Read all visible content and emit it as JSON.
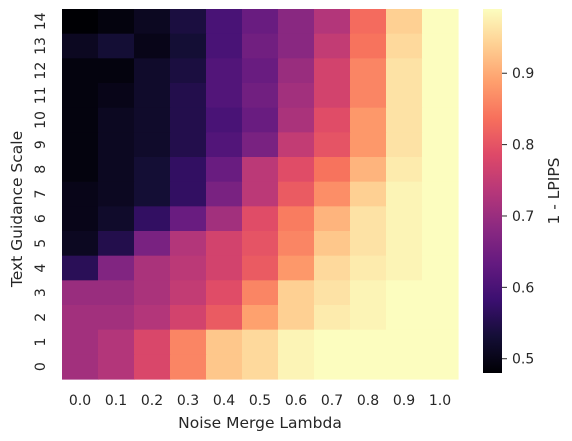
{
  "chart_data": {
    "type": "heatmap",
    "colormap": "magma",
    "xlabel": "Noise Merge Lambda",
    "ylabel": "Text Guidance Scale",
    "colorbar_label": "1 - LPIPS",
    "x": [
      "0.0",
      "0.1",
      "0.2",
      "0.3",
      "0.4",
      "0.5",
      "0.6",
      "0.7",
      "0.8",
      "0.9",
      "1.0"
    ],
    "y": [
      "14",
      "13",
      "12",
      "11",
      "10",
      "9",
      "8",
      "7",
      "6",
      "5",
      "4",
      "3",
      "2",
      "1",
      "0"
    ],
    "vmin": 0.48,
    "vmax": 0.99,
    "colorbar_ticks": [
      "0.9",
      "0.8",
      "0.7",
      "0.6",
      "0.5"
    ],
    "values": [
      [
        0.48,
        0.49,
        0.51,
        0.54,
        0.6,
        0.64,
        0.68,
        0.73,
        0.83,
        0.94,
        0.99
      ],
      [
        0.51,
        0.53,
        0.5,
        0.53,
        0.6,
        0.65,
        0.68,
        0.75,
        0.84,
        0.95,
        0.99
      ],
      [
        0.49,
        0.49,
        0.52,
        0.54,
        0.61,
        0.64,
        0.7,
        0.77,
        0.86,
        0.96,
        0.99
      ],
      [
        0.49,
        0.5,
        0.52,
        0.55,
        0.61,
        0.65,
        0.71,
        0.77,
        0.86,
        0.96,
        0.99
      ],
      [
        0.49,
        0.51,
        0.52,
        0.55,
        0.6,
        0.64,
        0.72,
        0.79,
        0.88,
        0.96,
        0.99
      ],
      [
        0.49,
        0.51,
        0.52,
        0.55,
        0.61,
        0.66,
        0.75,
        0.8,
        0.88,
        0.96,
        0.99
      ],
      [
        0.49,
        0.51,
        0.53,
        0.57,
        0.64,
        0.74,
        0.79,
        0.84,
        0.91,
        0.97,
        0.99
      ],
      [
        0.5,
        0.51,
        0.53,
        0.57,
        0.66,
        0.74,
        0.81,
        0.87,
        0.94,
        0.98,
        0.99
      ],
      [
        0.5,
        0.52,
        0.57,
        0.64,
        0.71,
        0.79,
        0.85,
        0.91,
        0.96,
        0.98,
        0.99
      ],
      [
        0.51,
        0.55,
        0.66,
        0.73,
        0.77,
        0.8,
        0.86,
        0.93,
        0.96,
        0.98,
        0.99
      ],
      [
        0.56,
        0.67,
        0.72,
        0.74,
        0.77,
        0.81,
        0.88,
        0.95,
        0.97,
        0.98,
        0.99
      ],
      [
        0.7,
        0.7,
        0.72,
        0.75,
        0.79,
        0.86,
        0.94,
        0.96,
        0.98,
        0.99,
        0.99
      ],
      [
        0.71,
        0.71,
        0.73,
        0.77,
        0.81,
        0.89,
        0.94,
        0.97,
        0.98,
        0.99,
        0.99
      ],
      [
        0.71,
        0.73,
        0.78,
        0.86,
        0.93,
        0.95,
        0.98,
        0.99,
        0.99,
        0.99,
        0.99
      ],
      [
        0.71,
        0.73,
        0.78,
        0.86,
        0.93,
        0.95,
        0.98,
        0.99,
        0.99,
        0.99,
        0.99
      ]
    ]
  }
}
